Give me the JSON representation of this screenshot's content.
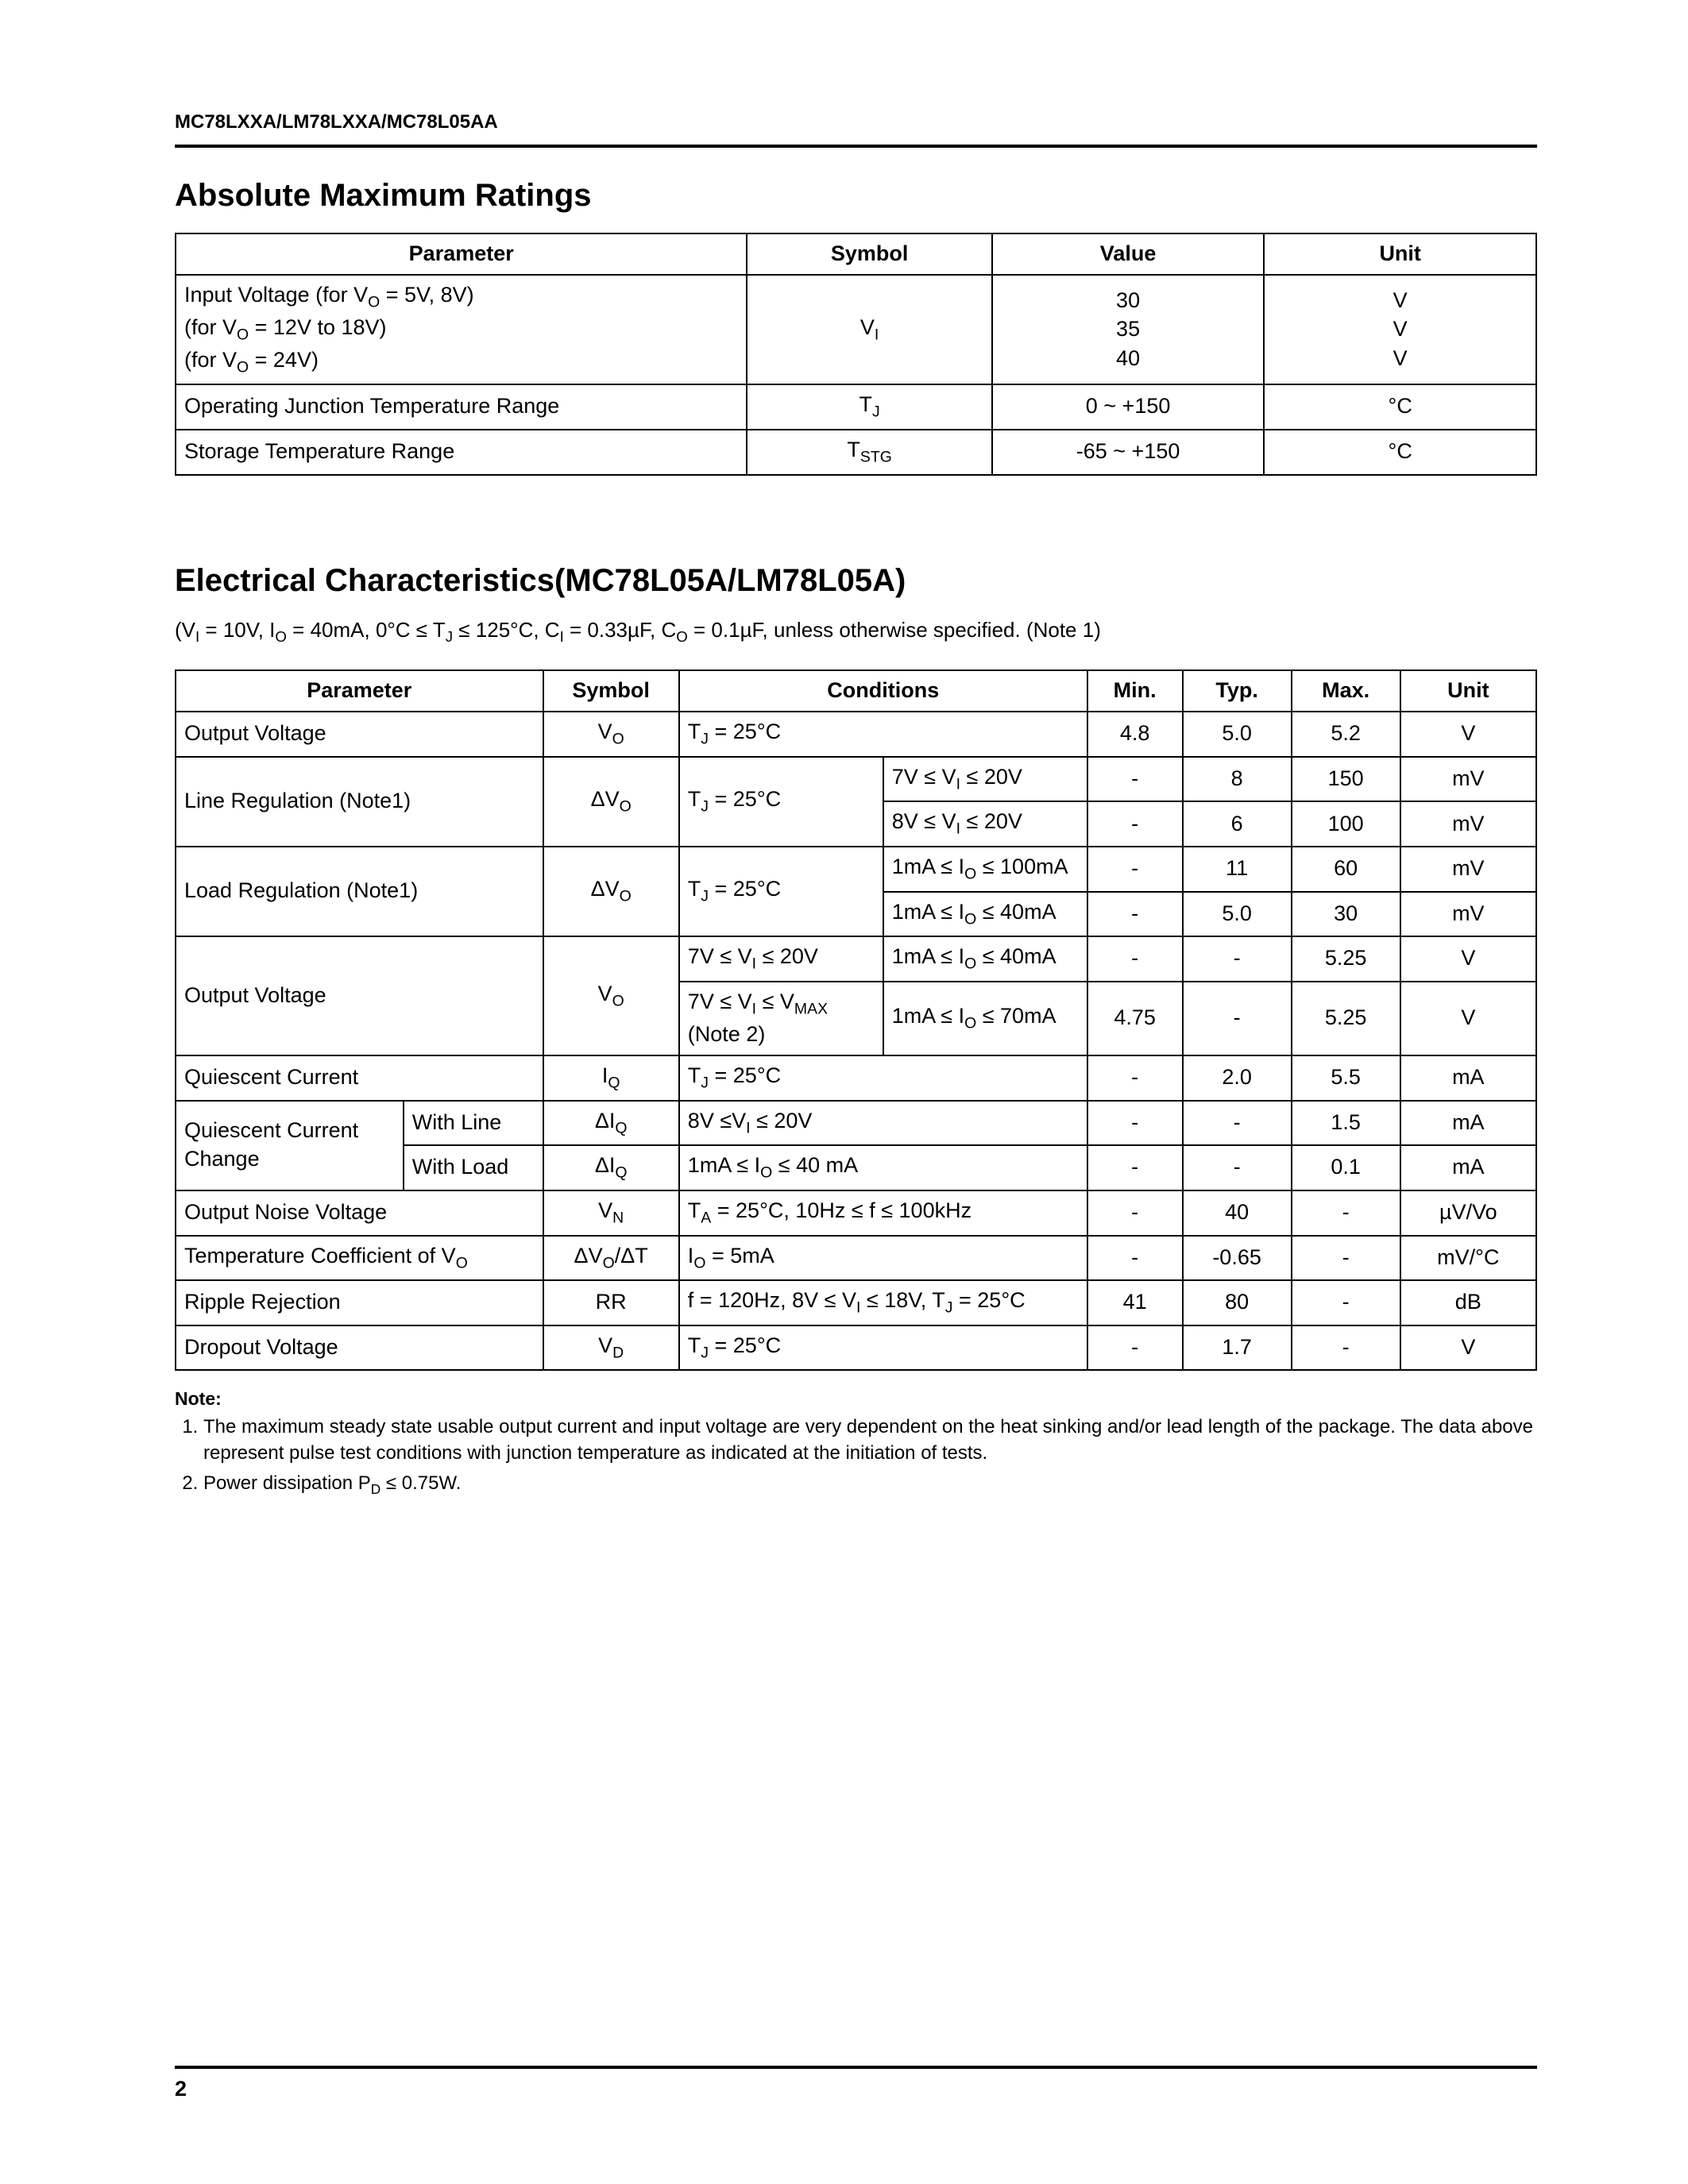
{
  "header": {
    "part_numbers": "MC78LXXA/LM78LXXA/MC78L05AA"
  },
  "section1": {
    "title": "Absolute Maximum Ratings",
    "columns": [
      "Parameter",
      "Symbol",
      "Value",
      "Unit"
    ],
    "rows": [
      {
        "param_lines": [
          "Input Voltage (for V<sub>O</sub> = 5V, 8V)",
          "(for V<sub>O</sub> = 12V to 18V)",
          "(for V<sub>O</sub> = 24V)"
        ],
        "symbol": "V<sub>I</sub>",
        "value_lines": [
          "30",
          "35",
          "40"
        ],
        "unit_lines": [
          "V",
          "V",
          "V"
        ]
      },
      {
        "param_lines": [
          "Operating Junction Temperature Range"
        ],
        "symbol": "T<sub>J</sub>",
        "value_lines": [
          "0 ~ +150"
        ],
        "unit_lines": [
          "°C"
        ]
      },
      {
        "param_lines": [
          "Storage Temperature Range"
        ],
        "symbol": "T<sub>STG</sub>",
        "value_lines": [
          "-65 ~ +150"
        ],
        "unit_lines": [
          "°C"
        ]
      }
    ]
  },
  "section2": {
    "title": "Electrical Characteristics(MC78L05A/LM78L05A)",
    "conditions": "(V<sub>I</sub> = 10V, I<sub>O</sub> = 40mA, 0°C ≤ T<sub>J</sub> ≤ 125°C, C<sub>I</sub> = 0.33µF, C<sub>O</sub> = 0.1µF, unless otherwise specified. (Note 1)",
    "columns": [
      "Parameter",
      "Symbol",
      "Conditions",
      "Min.",
      "Typ.",
      "Max.",
      "Unit"
    ],
    "col_widths_pct": [
      27,
      10,
      30,
      7,
      8,
      8,
      10
    ],
    "rows": [
      {
        "param": "Output Voltage",
        "symbol": "V<sub>O</sub>",
        "cond": "T<sub>J</sub> = 25°C",
        "min": "4.8",
        "typ": "5.0",
        "max": "5.2",
        "unit": "V"
      },
      {
        "param": "Line Regulation (Note1)",
        "param_rowspan": 2,
        "symbol": "ΔV<sub>O</sub>",
        "symbol_rowspan": 2,
        "cond1": "T<sub>J</sub> = 25°C",
        "cond1_rowspan": 2,
        "cond2": "7V ≤ V<sub>I</sub> ≤ 20V",
        "min": "-",
        "typ": "8",
        "max": "150",
        "unit": "mV"
      },
      {
        "cond2": "8V ≤ V<sub>I</sub> ≤ 20V",
        "min": "-",
        "typ": "6",
        "max": "100",
        "unit": "mV"
      },
      {
        "param": "Load Regulation (Note1)",
        "param_rowspan": 2,
        "symbol": "ΔV<sub>O</sub>",
        "symbol_rowspan": 2,
        "cond1": "T<sub>J</sub> = 25°C",
        "cond1_rowspan": 2,
        "cond2": "1mA ≤ I<sub>O</sub> ≤ 100mA",
        "min": "-",
        "typ": "11",
        "max": "60",
        "unit": "mV"
      },
      {
        "cond2": "1mA ≤ I<sub>O</sub> ≤ 40mA",
        "min": "-",
        "typ": "5.0",
        "max": "30",
        "unit": "mV"
      },
      {
        "param": "Output Voltage",
        "param_rowspan": 2,
        "symbol": "V<sub>O</sub>",
        "symbol_rowspan": 2,
        "cond1": "7V ≤ V<sub>I</sub> ≤ 20V",
        "cond2": "1mA ≤ I<sub>O</sub> ≤ 40mA",
        "min": "-",
        "typ": "-",
        "max": "5.25",
        "unit": "V"
      },
      {
        "cond1": "7V ≤ V<sub>I</sub> ≤ V<sub>MAX</sub><br>(Note 2)",
        "cond2": "1mA ≤ I<sub>O</sub> ≤ 70mA",
        "min": "4.75",
        "typ": "-",
        "max": "5.25",
        "unit": "V"
      },
      {
        "param": "Quiescent Current",
        "symbol": "I<sub>Q</sub>",
        "cond": "T<sub>J</sub> = 25°C",
        "min": "-",
        "typ": "2.0",
        "max": "5.5",
        "unit": "mA"
      },
      {
        "param": "Quiescent Current<br>Change",
        "param_rowspan": 2,
        "param2": "With Line",
        "symbol": "ΔI<sub>Q</sub>",
        "cond": "8V ≤V<sub>I</sub> ≤ 20V",
        "min": "-",
        "typ": "-",
        "max": "1.5",
        "unit": "mA"
      },
      {
        "param2": "With Load",
        "symbol": "ΔI<sub>Q</sub>",
        "cond": "1mA ≤ I<sub>O</sub> ≤ 40 mA",
        "min": "-",
        "typ": "-",
        "max": "0.1",
        "unit": "mA"
      },
      {
        "param": "Output Noise Voltage",
        "symbol": "V<sub>N</sub>",
        "cond": "T<sub>A</sub> = 25°C, 10Hz ≤ f ≤ 100kHz",
        "min": "-",
        "typ": "40",
        "max": "-",
        "unit": "µV/Vo"
      },
      {
        "param": "Temperature Coefficient of V<sub>O</sub>",
        "symbol": "ΔV<sub>O</sub>/ΔT",
        "cond": "I<sub>O</sub> = 5mA",
        "min": "-",
        "typ": "-0.65",
        "max": "-",
        "unit": "mV/°C"
      },
      {
        "param": "Ripple Rejection",
        "symbol": "RR",
        "cond": "f = 120Hz, 8V ≤ V<sub>I</sub> ≤ 18V, T<sub>J</sub> = 25°C",
        "min": "41",
        "typ": "80",
        "max": "-",
        "unit": "dB"
      },
      {
        "param": "Dropout Voltage",
        "symbol": "V<sub>D</sub>",
        "cond": "T<sub>J</sub> = 25°C",
        "min": "-",
        "typ": "1.7",
        "max": "-",
        "unit": "V"
      }
    ]
  },
  "notes": {
    "title": "Note:",
    "items": [
      "The maximum steady state usable output current and input voltage are very dependent on the heat sinking and/or lead length of the package. The data above represent pulse test conditions with junction temperature as indicated at the initiation of tests.",
      "Power dissipation P<sub>D</sub> ≤ 0.75W."
    ]
  },
  "page_number": "2",
  "styling": {
    "page_bg": "#ffffff",
    "text_color": "#000000",
    "border_color": "#000000",
    "body_font_pt": 27,
    "title_font_pt": 40,
    "header_font_pt": 24,
    "note_font_pt": 24
  }
}
